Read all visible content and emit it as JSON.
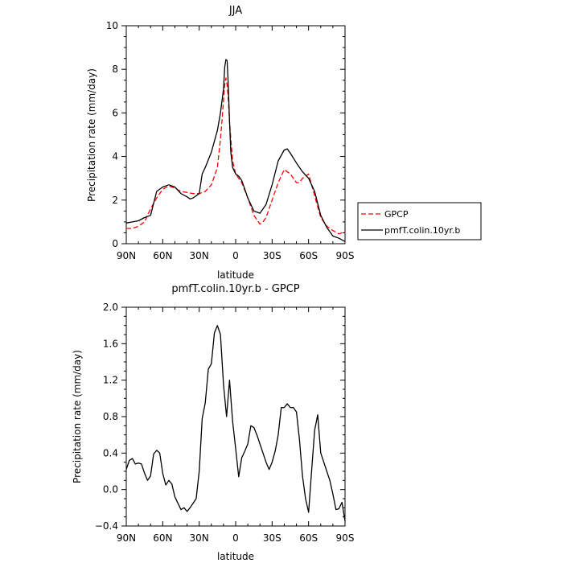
{
  "chart_data": [
    {
      "type": "line",
      "title": "JJA",
      "xlabel": "latitude",
      "ylabel": "Precipitation rate (mm/day)",
      "xlim": [
        90,
        -90
      ],
      "ylim": [
        0,
        10
      ],
      "x_ticks": [
        90,
        60,
        30,
        0,
        -30,
        -60,
        -90
      ],
      "x_tick_labels": [
        "90N",
        "60N",
        "30N",
        "0",
        "30S",
        "60S",
        "90S"
      ],
      "y_ticks": [
        0,
        2,
        4,
        6,
        8,
        10
      ],
      "y_tick_labels": [
        "0",
        "2",
        "4",
        "6",
        "8",
        "10"
      ],
      "legend": "right",
      "series": [
        {
          "name": "GPCP",
          "color": "#ff0000",
          "style": "dashed",
          "x": [
            90,
            85,
            80,
            75,
            70,
            65,
            60,
            55,
            50,
            45,
            40,
            35,
            30,
            25,
            20,
            17.5,
            15,
            12.5,
            11,
            10,
            9,
            8,
            7,
            6,
            5,
            4,
            2.5,
            0,
            -2.5,
            -5,
            -10,
            -15,
            -20,
            -22.5,
            -25,
            -30,
            -35,
            -40,
            -45,
            -50,
            -52.5,
            -55,
            -60,
            -65,
            -70,
            -75,
            -80,
            -85,
            -90
          ],
          "y": [
            0.7,
            0.7,
            0.8,
            1.0,
            1.6,
            2.1,
            2.5,
            2.65,
            2.55,
            2.4,
            2.35,
            2.3,
            2.3,
            2.4,
            2.7,
            3.1,
            3.5,
            4.8,
            5.8,
            6.6,
            7.3,
            7.6,
            7.3,
            6.6,
            5.6,
            4.8,
            3.8,
            3.2,
            3.0,
            2.8,
            2.1,
            1.3,
            0.9,
            1.0,
            1.2,
            2.0,
            2.8,
            3.4,
            3.2,
            2.8,
            2.8,
            3.0,
            3.2,
            2.2,
            1.2,
            0.8,
            0.6,
            0.45,
            0.55
          ]
        },
        {
          "name": "pmfT.colin.10yr.b",
          "color": "#000000",
          "style": "solid",
          "x": [
            90,
            85,
            80,
            75,
            70,
            65,
            60,
            55,
            50,
            45,
            40,
            37.5,
            35,
            30,
            27.5,
            25,
            20,
            15,
            12.5,
            10,
            9,
            8,
            7,
            6,
            5,
            4,
            2.5,
            0,
            -2.5,
            -5,
            -10,
            -15,
            -20,
            -25,
            -30,
            -35,
            -40,
            -42.5,
            -45,
            -50,
            -55,
            -60,
            -65,
            -70,
            -75,
            -80,
            -85,
            -90
          ],
          "y": [
            0.95,
            1.0,
            1.05,
            1.2,
            1.3,
            2.4,
            2.6,
            2.7,
            2.6,
            2.3,
            2.15,
            2.05,
            2.1,
            2.3,
            3.2,
            3.5,
            4.2,
            5.2,
            6.0,
            7.1,
            8.1,
            8.45,
            8.4,
            7.2,
            5.6,
            4.2,
            3.5,
            3.2,
            3.1,
            2.9,
            2.1,
            1.5,
            1.4,
            1.8,
            2.7,
            3.8,
            4.3,
            4.35,
            4.15,
            3.7,
            3.3,
            3.0,
            2.4,
            1.3,
            0.75,
            0.35,
            0.25,
            0.1
          ]
        }
      ]
    },
    {
      "type": "line",
      "title": "pmfT.colin.10yr.b - GPCP",
      "xlabel": "latitude",
      "ylabel": "Precipitation rate (mm/day)",
      "xlim": [
        90,
        -90
      ],
      "ylim": [
        -0.4,
        2.0
      ],
      "x_ticks": [
        90,
        60,
        30,
        0,
        -30,
        -60,
        -90
      ],
      "x_tick_labels": [
        "90N",
        "60N",
        "30N",
        "0",
        "30S",
        "60S",
        "90S"
      ],
      "y_ticks": [
        -0.4,
        0.0,
        0.4,
        0.8,
        1.2,
        1.6,
        2.0
      ],
      "y_tick_labels": [
        "−0.4",
        "0.0",
        "0.4",
        "0.8",
        "1.2",
        "1.6",
        "2.0"
      ],
      "series": [
        {
          "color": "#000000",
          "style": "solid",
          "x": [
            90,
            87.5,
            85,
            82.5,
            80,
            77.5,
            75,
            72.5,
            70,
            67.5,
            65,
            62.5,
            60,
            57.5,
            55,
            52.5,
            50,
            47.5,
            45,
            42.5,
            40,
            37.5,
            35,
            32.5,
            30,
            27.5,
            25,
            22.5,
            20,
            17.5,
            15,
            12.5,
            10,
            7.5,
            5,
            2.5,
            0,
            -2.5,
            -5,
            -7.5,
            -10,
            -12.5,
            -15,
            -17.5,
            -20,
            -22.5,
            -25,
            -27.5,
            -30,
            -32.5,
            -35,
            -37.5,
            -40,
            -42.5,
            -45,
            -47.5,
            -50,
            -52.5,
            -55,
            -57.5,
            -60,
            -62.5,
            -65,
            -67.5,
            -70,
            -72.5,
            -75,
            -77.5,
            -80,
            -82.5,
            -85,
            -87.5,
            -90
          ],
          "y": [
            0.22,
            0.32,
            0.34,
            0.28,
            0.29,
            0.28,
            0.18,
            0.1,
            0.15,
            0.39,
            0.43,
            0.4,
            0.18,
            0.05,
            0.1,
            0.06,
            -0.08,
            -0.15,
            -0.22,
            -0.2,
            -0.24,
            -0.2,
            -0.15,
            -0.1,
            0.2,
            0.78,
            0.95,
            1.32,
            1.38,
            1.72,
            1.8,
            1.7,
            1.15,
            0.8,
            1.2,
            0.75,
            0.45,
            0.14,
            0.35,
            0.42,
            0.5,
            0.7,
            0.68,
            0.6,
            0.5,
            0.4,
            0.3,
            0.22,
            0.3,
            0.42,
            0.6,
            0.9,
            0.9,
            0.94,
            0.9,
            0.9,
            0.85,
            0.55,
            0.15,
            -0.1,
            -0.25,
            0.2,
            0.65,
            0.82,
            0.4,
            0.3,
            0.2,
            0.1,
            -0.05,
            -0.22,
            -0.21,
            -0.14,
            -0.35
          ]
        }
      ]
    }
  ]
}
